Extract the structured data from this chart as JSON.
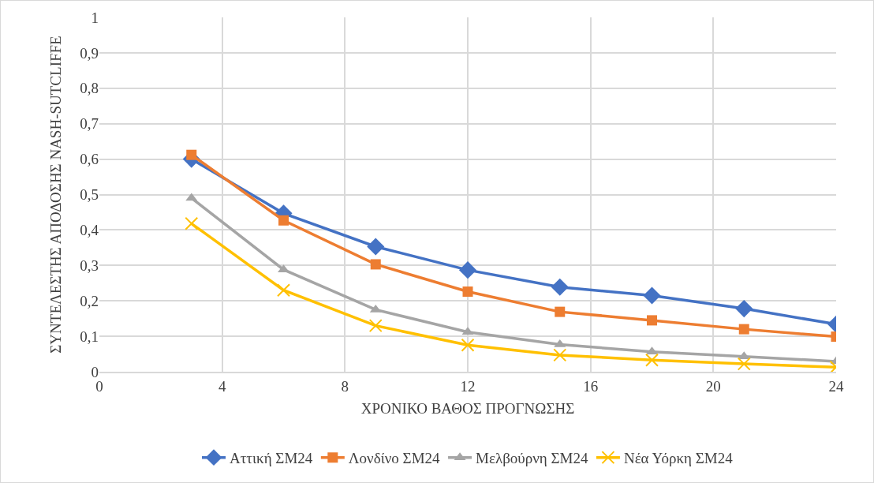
{
  "chart_data": {
    "type": "line",
    "xlabel": "ΧΡΟΝΙΚΟ ΒΑΘΟΣ ΠΡΟΓΝΩΣΗΣ",
    "ylabel": "ΣΥΝΤΕΛΕΣΤΗΣ ΑΠΟΔΟΣΗΣ NASH-SUTCLIFFE",
    "x": [
      3,
      6,
      9,
      12,
      15,
      18,
      21,
      24
    ],
    "xlim": [
      0,
      24
    ],
    "xticks": [
      0,
      4,
      8,
      12,
      16,
      20,
      24
    ],
    "ylim": [
      0,
      1
    ],
    "yticks": [
      0,
      {
        "value": 0.1,
        "label": "0,1"
      },
      {
        "value": 0.2,
        "label": "0,2"
      },
      {
        "value": 0.3,
        "label": "0,3"
      },
      {
        "value": 0.4,
        "label": "0,4"
      },
      {
        "value": 0.5,
        "label": "0,5"
      },
      {
        "value": 0.6,
        "label": "0,6"
      },
      {
        "value": 0.7,
        "label": "0,7"
      },
      {
        "value": 0.8,
        "label": "0,8"
      },
      {
        "value": 0.9,
        "label": "0,9"
      },
      1
    ],
    "grid": true,
    "legend": "bottom",
    "line_style": "solid",
    "series": [
      {
        "name": "Αττική ΣΜ24",
        "color": "#4472c4",
        "marker": "diamond",
        "values": [
          0.6,
          0.447,
          0.353,
          0.287,
          0.239,
          0.215,
          0.178,
          0.134
        ]
      },
      {
        "name": "Λονδίνο ΣΜ24",
        "color": "#ed7d31",
        "marker": "square",
        "values": [
          0.612,
          0.427,
          0.303,
          0.226,
          0.169,
          0.145,
          0.12,
          0.099
        ]
      },
      {
        "name": "Μελβούρνη ΣΜ24",
        "color": "#a5a5a5",
        "marker": "triangle",
        "values": [
          0.49,
          0.288,
          0.175,
          0.112,
          0.077,
          0.056,
          0.043,
          0.029
        ]
      },
      {
        "name": "Νέα Υόρκη ΣΜ24",
        "color": "#ffc000",
        "marker": "cross",
        "values": [
          0.418,
          0.23,
          0.13,
          0.075,
          0.047,
          0.033,
          0.022,
          0.013
        ]
      }
    ]
  }
}
